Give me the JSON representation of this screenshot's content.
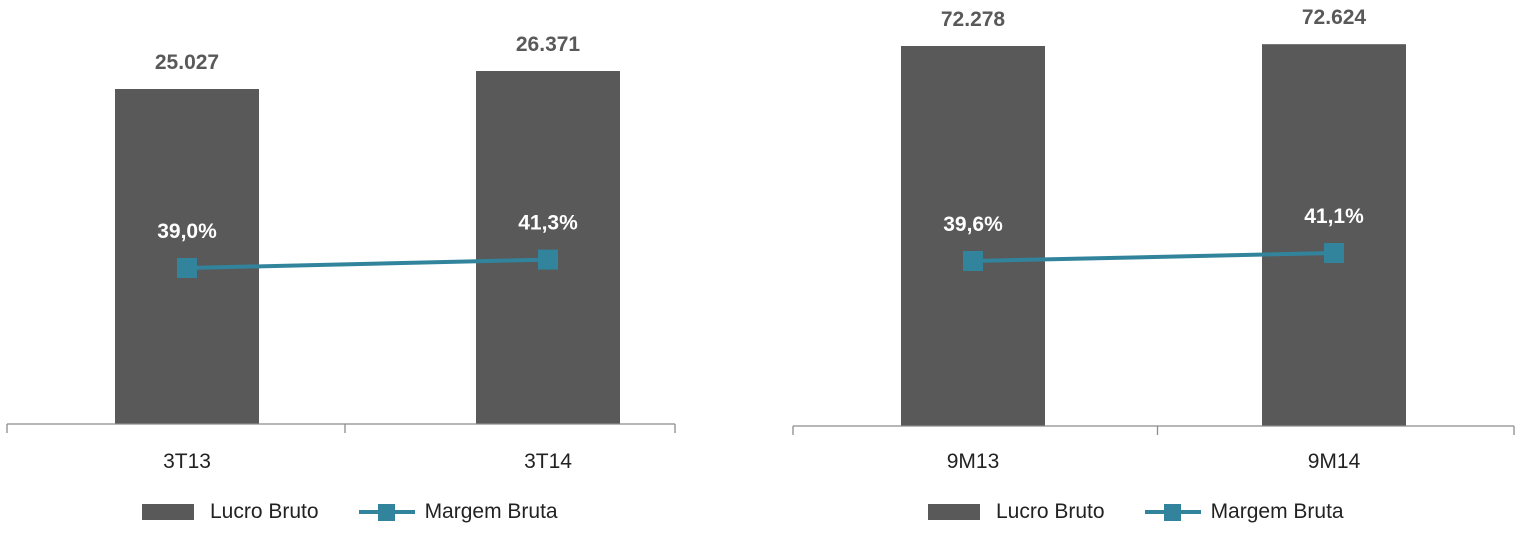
{
  "chart_data": [
    {
      "type": "bar",
      "categories": [
        "3T13",
        "3T14"
      ],
      "series": [
        {
          "name": "Lucro Bruto",
          "type": "bar",
          "values": [
            25027,
            26371
          ],
          "labels": [
            "25.027",
            "26.371"
          ],
          "color": "#595959"
        },
        {
          "name": "Margem Bruta",
          "type": "line",
          "values": [
            39.0,
            41.3
          ],
          "labels": [
            "39,0%",
            "41,3%"
          ],
          "color": "#31849b"
        }
      ],
      "legend": [
        "Lucro Bruto",
        "Margem Bruta"
      ],
      "legend_position": "bottom",
      "grid": false
    },
    {
      "type": "bar",
      "categories": [
        "9M13",
        "9M14"
      ],
      "series": [
        {
          "name": "Lucro Bruto",
          "type": "bar",
          "values": [
            72278,
            72624
          ],
          "labels": [
            "72.278",
            "72.624"
          ],
          "color": "#595959"
        },
        {
          "name": "Margem Bruta",
          "type": "line",
          "values": [
            39.6,
            41.1
          ],
          "labels": [
            "39,6%",
            "41,1%"
          ],
          "color": "#31849b"
        }
      ],
      "legend": [
        "Lucro Bruto",
        "Margem Bruta"
      ],
      "legend_position": "bottom",
      "grid": false
    }
  ]
}
